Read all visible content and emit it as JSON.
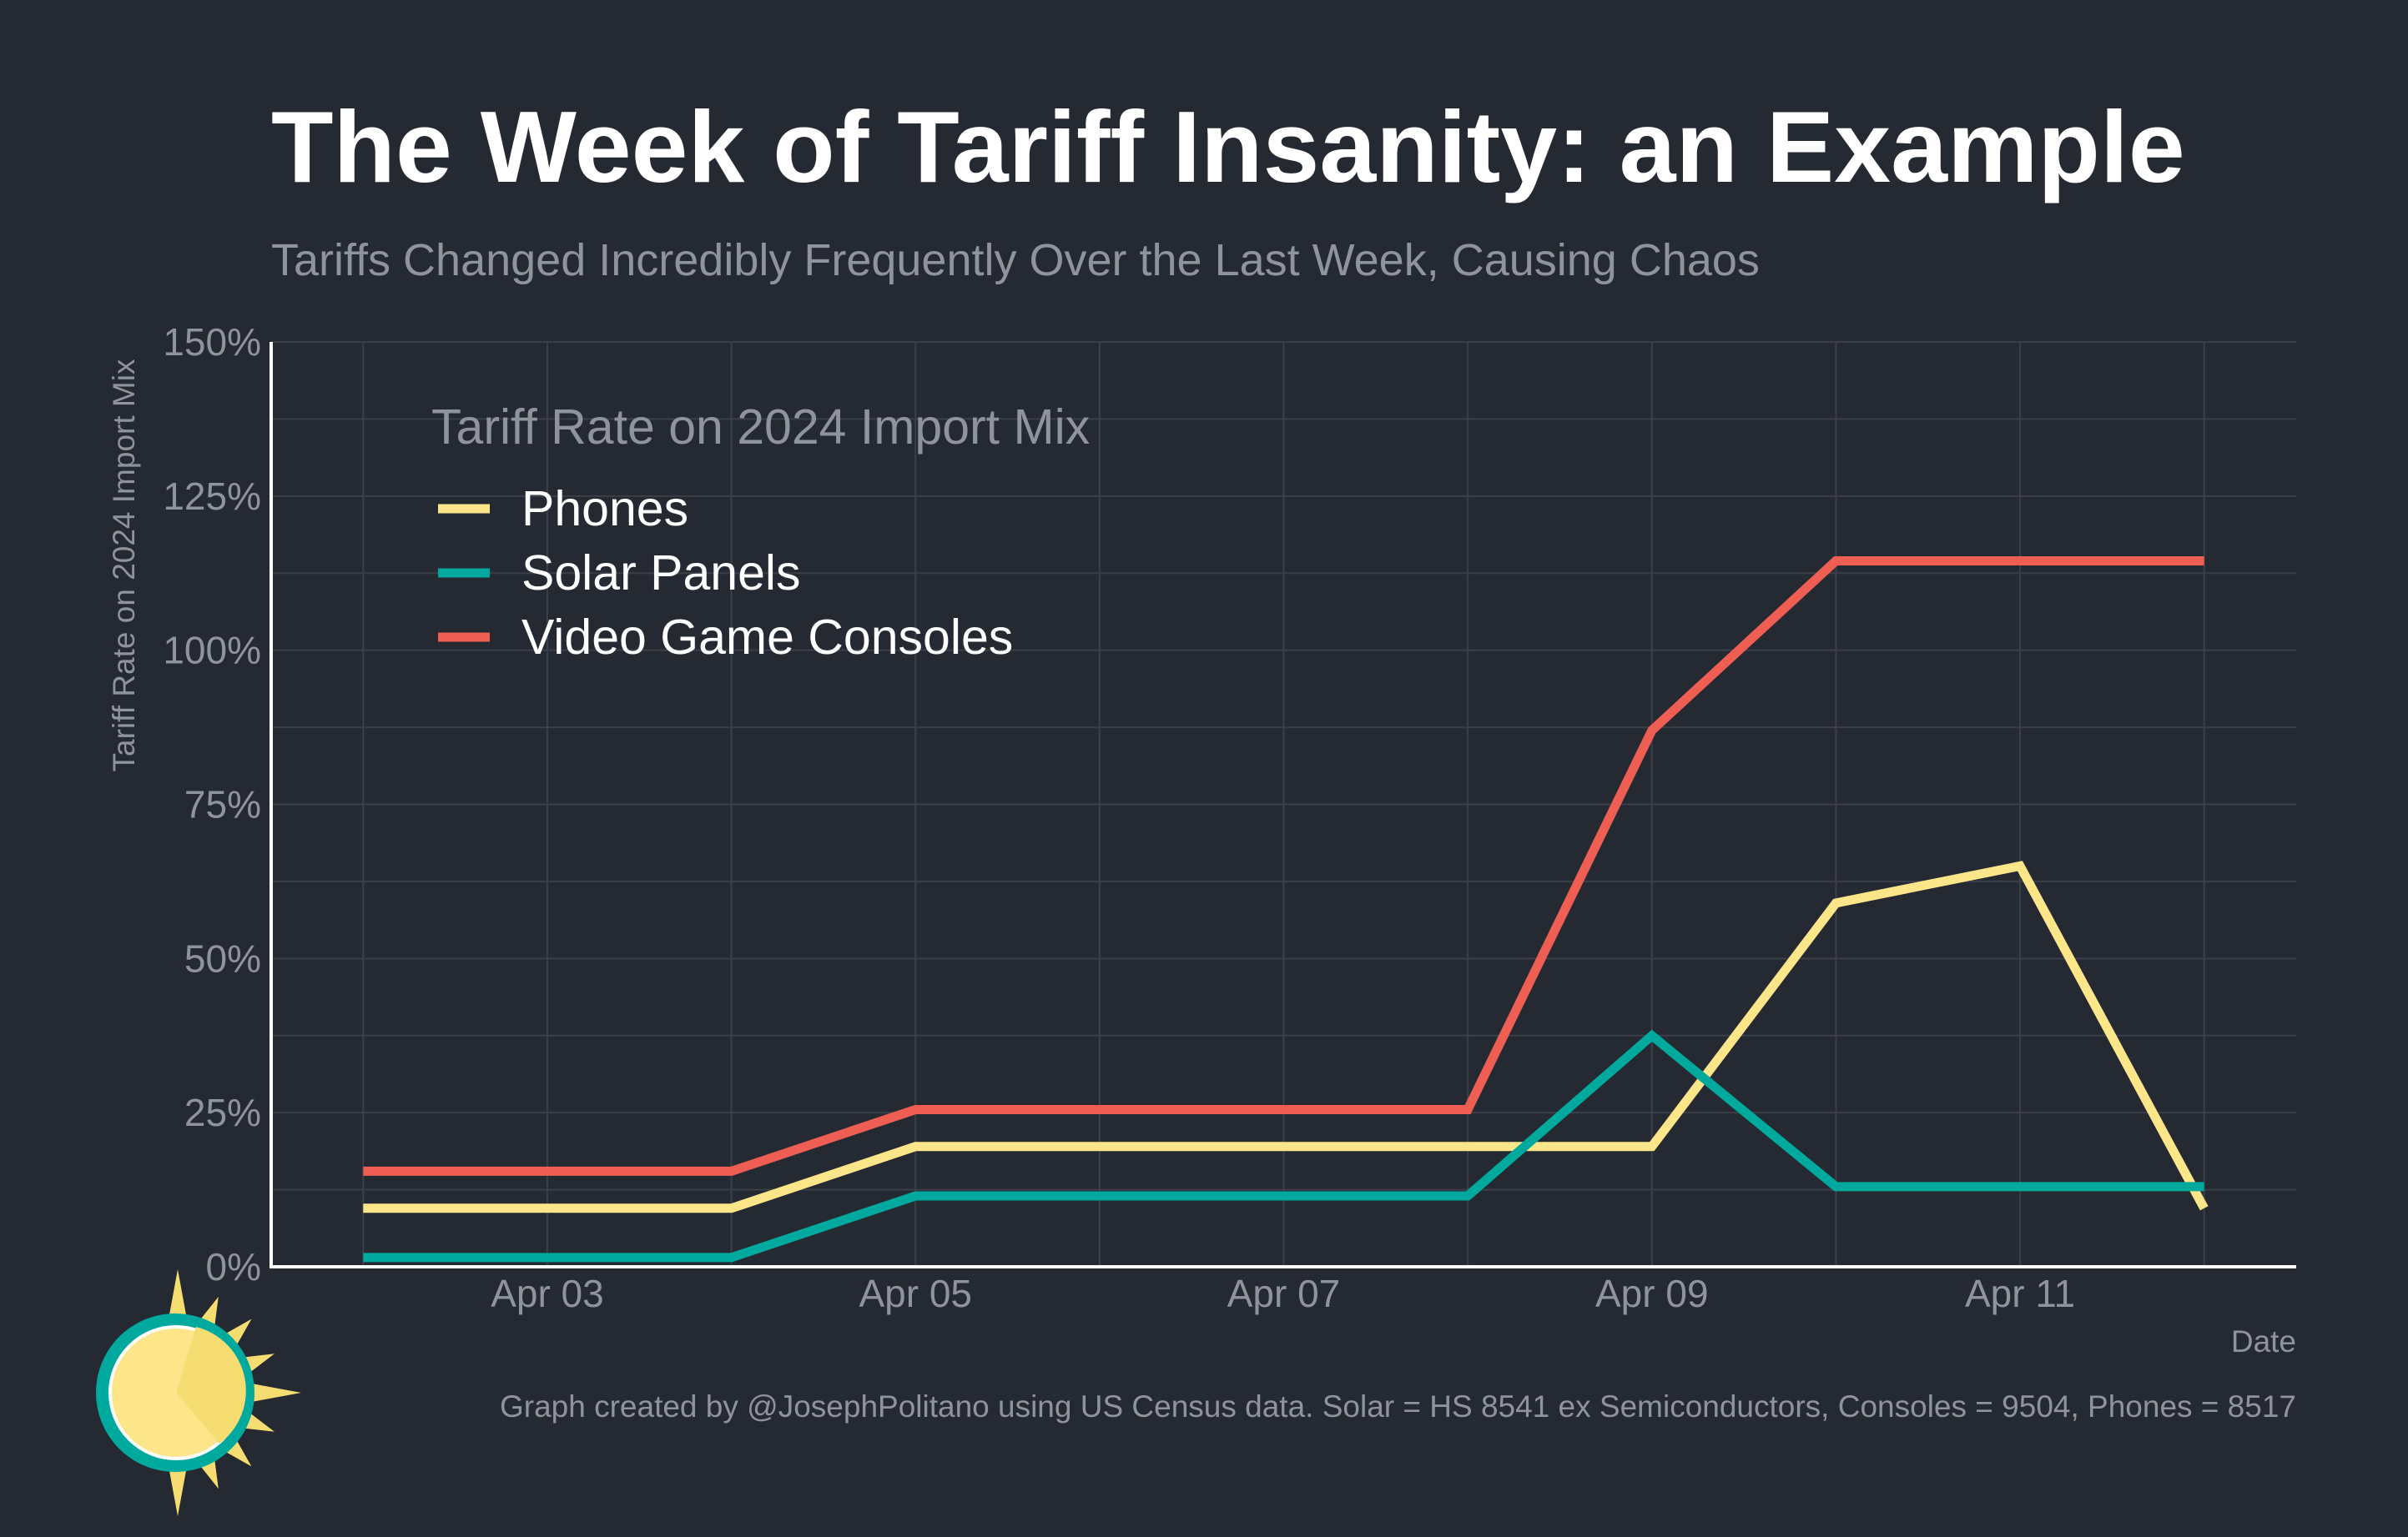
{
  "title": "The Week of Tariff Insanity: an Example",
  "subtitle": "Tariffs Changed Incredibly Frequently Over the Last Week, Causing Chaos",
  "caption": "Graph created by @JosephPolitano using US Census data. Solar = HS 8541 ex Semiconductors, Consoles = 9504, Phones = 8517",
  "colors": {
    "background": "#252932",
    "phones": "#fde68a",
    "solar": "#00a99d",
    "consoles": "#ee5e52",
    "logo_ring": "#00a99d",
    "logo_sun": "#fde68a",
    "logo_rays": "#f5dd72"
  },
  "logo": {
    "icon": "sun-logo-icon"
  },
  "chart_data": {
    "type": "line",
    "title": "The Week of Tariff Insanity: an Example",
    "subtitle": "Tariffs Changed Incredibly Frequently Over the Last Week, Causing Chaos",
    "xlabel": "Date",
    "ylabel": "Tariff Rate on 2024 Import Mix",
    "legend_title": "Tariff Rate on 2024 Import Mix",
    "legend_position": "top-left",
    "grid": true,
    "x": [
      "2025-04-02",
      "2025-04-03",
      "2025-04-04",
      "2025-04-05",
      "2025-04-06",
      "2025-04-07",
      "2025-04-08",
      "2025-04-09",
      "2025-04-10",
      "2025-04-11",
      "2025-04-12"
    ],
    "xticks": [
      "2025-04-03",
      "2025-04-05",
      "2025-04-07",
      "2025-04-09",
      "2025-04-11"
    ],
    "xtick_labels": [
      "Apr 03",
      "Apr 05",
      "Apr 07",
      "Apr 09",
      "Apr 11"
    ],
    "xlim": [
      "2025-04-01T12:00",
      "2025-04-12T12:00"
    ],
    "yticks": [
      0,
      25,
      50,
      75,
      100,
      125,
      150
    ],
    "ytick_labels": [
      "0%",
      "25%",
      "50%",
      "75%",
      "100%",
      "125%",
      "150%"
    ],
    "ylim": [
      0,
      150
    ],
    "series": [
      {
        "name": "Phones",
        "color": "#fde68a",
        "values": [
          9.5,
          9.5,
          9.5,
          19.5,
          19.5,
          19.5,
          19.5,
          19.5,
          59,
          65,
          9.5
        ]
      },
      {
        "name": "Solar Panels",
        "color": "#00a99d",
        "values": [
          1.5,
          1.5,
          1.5,
          11.5,
          11.5,
          11.5,
          11.5,
          37.5,
          13,
          13,
          13
        ]
      },
      {
        "name": "Video Game Consoles",
        "color": "#ee5e52",
        "values": [
          15.5,
          15.5,
          15.5,
          25.5,
          25.5,
          25.5,
          25.5,
          87,
          114.5,
          114.5,
          114.5
        ]
      }
    ]
  }
}
